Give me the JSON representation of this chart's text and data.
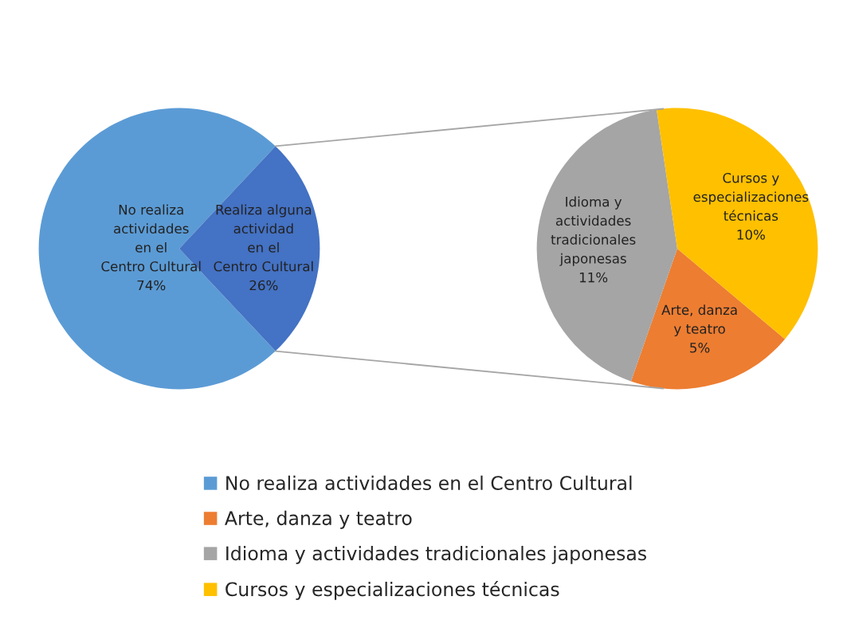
{
  "chart_data": [
    {
      "type": "pie",
      "categories": [
        "No realiza actividades en el Centro Cultural",
        null
      ],
      "values": [
        74,
        26
      ],
      "colors": [
        "#5b9bd5",
        "#4472c4"
      ],
      "value_labels": [
        "No realiza\nactividades\nen el\nCentro Cultural\n74%",
        "Realiza alguna\nactividad\nen el\nCentro Cultural\n26%"
      ],
      "legend": "bottom"
    },
    {
      "type": "pie",
      "categories": [
        "Arte, danza y teatro",
        "Idioma y actividades tradicionales japonesas",
        "Cursos y especializaciones técnicas"
      ],
      "values": [
        5,
        11,
        10
      ],
      "colors": [
        "#ed7d31",
        "#a5a5a5",
        "#ffc000"
      ],
      "value_labels": [
        "Arte, danza\ny teatro\n5%",
        "Idioma y\nactividades\ntradicionales\njaponesas\n11%",
        "Cursos y\nespecializaciones\ntécnicas\n10%"
      ],
      "legend": "bottom"
    }
  ]
}
